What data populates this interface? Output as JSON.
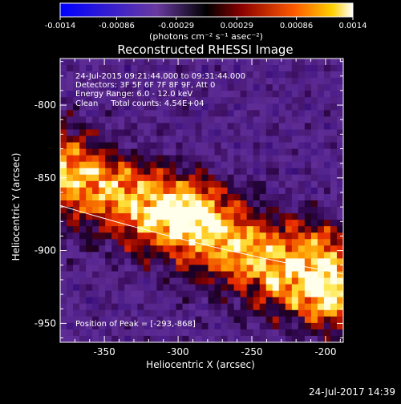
{
  "chart_data": {
    "type": "heatmap",
    "title": "Reconstructed RHESSI Image",
    "xlabel": "Heliocentric X (arcsec)",
    "ylabel": "Heliocentric Y (arcsec)",
    "xlim": [
      -380,
      -188
    ],
    "ylim": [
      -963,
      -768
    ],
    "x_ticks": [
      -350,
      -300,
      -250,
      -200
    ],
    "y_ticks": [
      -950,
      -900,
      -850,
      -800
    ],
    "colorbar": {
      "range": [
        -0.0014,
        0.0014
      ],
      "ticks": [
        -0.0014,
        -0.00086,
        -0.00029,
        0.00029,
        0.00086,
        0.0014
      ],
      "tick_labels": [
        "-0.0014",
        "-0.00086",
        "-0.00029",
        "0.00029",
        "0.00086",
        "0.0014"
      ],
      "unit_label": "(photons cm⁻² s⁻¹ asec⁻²)"
    },
    "annotations": [
      "24-Jul-2015 09:21:44.000 to 09:31:44.000",
      "Detectors: 3F 5F 6F 7F 8F 9F, Att 0",
      "Energy Range: 6.0 - 12.0 keV",
      "Clean     Total counts: 4.54E+04"
    ],
    "peak_label": "Position of Peak = [-293,-868]",
    "peak": [
      -293,
      -868
    ],
    "limb_line": {
      "color": "#ffffff"
    },
    "grid": false
  },
  "footer": {
    "timestamp": "24-Jul-2017 14:39"
  }
}
